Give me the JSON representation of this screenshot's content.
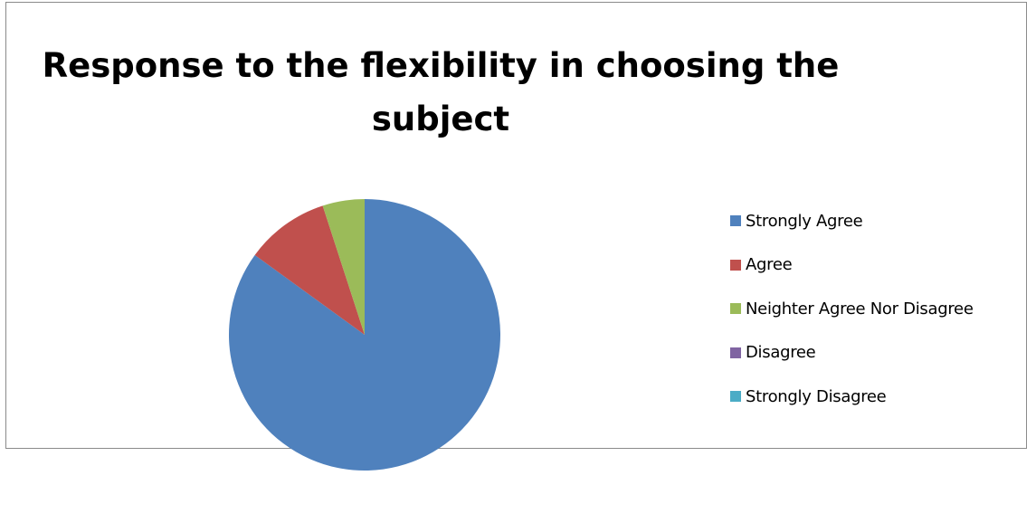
{
  "chart_data": {
    "type": "pie",
    "title": "Response to the flexibility in choosing the subject",
    "title_lines": [
      "Response to the flexibility in choosing the",
      "subject"
    ],
    "categories": [
      "Strongly Agree",
      "Agree",
      "Neighter Agree Nor Disagree",
      "Disagree",
      "Strongly Disagree"
    ],
    "values": [
      85,
      10,
      5,
      0,
      0
    ],
    "colors": [
      "#4f81bd",
      "#c0504d",
      "#9bbb59",
      "#8064a2",
      "#4bacc6"
    ],
    "legend_position": "right",
    "start_angle_deg": 0,
    "direction": "clockwise"
  }
}
